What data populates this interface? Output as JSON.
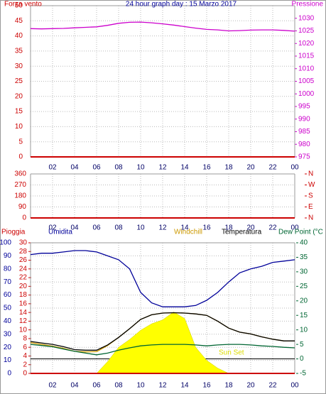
{
  "chart_data": [
    {
      "type": "line",
      "title": "24 hour graph day : 15 Marzo 2017",
      "ylabel": "Forza vento",
      "y2label": "Pressione",
      "ycolor": "#cc0000",
      "y2color": "#cc00cc",
      "x": [
        0,
        1,
        2,
        3,
        4,
        5,
        6,
        7,
        8,
        9,
        10,
        11,
        12,
        13,
        14,
        15,
        16,
        17,
        18,
        19,
        20,
        21,
        22,
        23,
        24
      ],
      "xlim": [
        0,
        24
      ],
      "xticks": [
        {
          "value": 2,
          "label": "02"
        },
        {
          "value": 4,
          "label": "04"
        },
        {
          "value": 6,
          "label": "06"
        },
        {
          "value": 8,
          "label": "08"
        },
        {
          "value": 10,
          "label": "10"
        },
        12,
        14,
        16,
        18,
        20,
        22,
        {
          "value": 24,
          "label": "00"
        }
      ],
      "ylim": [
        0,
        50
      ],
      "yticks": [
        0,
        5,
        10,
        15,
        20,
        25,
        30,
        35,
        40,
        45,
        50
      ],
      "y2lim": [
        975,
        1035
      ],
      "y2ticks": [
        975,
        980,
        985,
        990,
        995,
        1000,
        1005,
        1010,
        1015,
        1020,
        1025,
        1030
      ],
      "grid": true,
      "series": [
        {
          "color": "#cc0000",
          "values": [
            0,
            0,
            0,
            0,
            0,
            0,
            0,
            0,
            0,
            0,
            0,
            0,
            0,
            0,
            0,
            0,
            0,
            0,
            0,
            0,
            0,
            0,
            0,
            0,
            0
          ]
        },
        {
          "color": "#cc00cc",
          "axis": "y2",
          "values": [
            1025.9,
            1025.8,
            1025.9,
            1026.0,
            1026.2,
            1026.4,
            1026.6,
            1027.2,
            1028.0,
            1028.4,
            1028.5,
            1028.2,
            1027.8,
            1027.3,
            1026.7,
            1026.1,
            1025.6,
            1025.4,
            1025.0,
            1025.1,
            1025.3,
            1025.4,
            1025.4,
            1025.2,
            1024.9
          ]
        }
      ]
    },
    {
      "type": "line",
      "ycolor": "#cc0000",
      "y2color": "#cc0000",
      "x": [
        0,
        1,
        2,
        3,
        4,
        5,
        6,
        7,
        8,
        9,
        10,
        11,
        12,
        13,
        14,
        15,
        16,
        17,
        18,
        19,
        20,
        21,
        22,
        23,
        24
      ],
      "xlim": [
        0,
        24
      ],
      "xticks": [
        {
          "value": 2,
          "label": "02"
        },
        {
          "value": 4,
          "label": "04"
        },
        {
          "value": 6,
          "label": "06"
        },
        {
          "value": 8,
          "label": "08"
        },
        {
          "value": 10,
          "label": "10"
        },
        12,
        14,
        16,
        18,
        20,
        22,
        {
          "value": 24,
          "label": "00"
        }
      ],
      "ylim": [
        0,
        360
      ],
      "yticks": [
        0,
        90,
        180,
        270,
        360
      ],
      "y2lim": [
        0,
        360
      ],
      "y2ticks": [
        {
          "value": 360,
          "label": "N"
        },
        {
          "value": 270,
          "label": "W"
        },
        {
          "value": 180,
          "label": "S"
        },
        {
          "value": 90,
          "label": "E"
        },
        {
          "value": 0,
          "label": "N"
        }
      ],
      "grid": true,
      "series": [
        {
          "color": "#cc0000",
          "values": [
            0,
            0,
            0,
            0,
            0,
            0,
            0,
            0,
            0,
            0,
            0,
            0,
            0,
            0,
            0,
            0,
            0,
            0,
            0,
            0,
            0,
            0,
            0,
            0,
            0
          ]
        }
      ]
    },
    {
      "type": "line",
      "ycolor": "#000099",
      "y2color": "#006633",
      "y3color": "#cc0000",
      "x": [
        0,
        1,
        2,
        3,
        4,
        5,
        6,
        7,
        8,
        9,
        10,
        11,
        12,
        13,
        14,
        15,
        16,
        17,
        18,
        19,
        20,
        21,
        22,
        23,
        24
      ],
      "xlim": [
        0,
        24
      ],
      "xticks": [
        {
          "value": 2,
          "label": "02"
        },
        {
          "value": 4,
          "label": "04"
        },
        {
          "value": 6,
          "label": "06"
        },
        {
          "value": 8,
          "label": "08"
        },
        {
          "value": 10,
          "label": "10"
        },
        12,
        14,
        16,
        18,
        20,
        22,
        {
          "value": 24,
          "label": "00"
        }
      ],
      "ylim": [
        0,
        100
      ],
      "yticks": [
        0,
        10,
        20,
        30,
        40,
        50,
        60,
        70,
        80,
        90,
        100
      ],
      "y2lim": [
        -5,
        40
      ],
      "y2ticks": [
        -5,
        0,
        5,
        10,
        15,
        20,
        25,
        30,
        35,
        40
      ],
      "y3lim": [
        0,
        30
      ],
      "y3ticks": [
        0,
        2,
        4,
        6,
        8,
        10,
        12,
        14,
        16,
        18,
        20,
        22,
        24,
        26,
        28,
        30
      ],
      "grid": true,
      "annotations": [
        "Sun Set"
      ],
      "series": [
        {
          "kind": "area",
          "color": "#ffff00",
          "values": [
            0,
            0,
            0,
            0,
            0,
            0,
            0,
            9,
            20,
            26,
            33,
            38,
            41,
            47,
            42,
            20,
            10,
            4,
            0,
            0,
            0,
            0,
            0,
            0,
            0
          ]
        },
        {
          "name": "Pioggia",
          "color": "#cc0000",
          "axis": "y3",
          "values": [
            0,
            0,
            0,
            0,
            0,
            0,
            0,
            0,
            0,
            0,
            0,
            0,
            0,
            0,
            0,
            0,
            0,
            0,
            0,
            0,
            0,
            0,
            0,
            0,
            0
          ]
        },
        {
          "name": "Umidita",
          "color": "#000099",
          "values": [
            91,
            92,
            92,
            93,
            94,
            94,
            93,
            90,
            87,
            80,
            62,
            54,
            51,
            51,
            51,
            52,
            56,
            62,
            70,
            77,
            80,
            82,
            85,
            86,
            87
          ]
        },
        {
          "name": "Windchill",
          "color": "#cc9900",
          "axis": "y2",
          "values": [
            5.6,
            5.0,
            4.4,
            3.6,
            2.6,
            2.4,
            2.5,
            4.6,
            7.4,
            10.4,
            13.6,
            15.2,
            15.8,
            15.9,
            15.8,
            15.5,
            15.0,
            13.0,
            10.6,
            9.2,
            8.6,
            7.6,
            6.8,
            6.2,
            6.2
          ]
        },
        {
          "name": "Temperatura",
          "color": "#000000",
          "axis": "y2",
          "values": [
            6.0,
            5.5,
            5.0,
            4.2,
            3.2,
            3.0,
            3.0,
            4.8,
            7.4,
            10.4,
            13.6,
            15.2,
            15.8,
            15.9,
            15.8,
            15.5,
            15.0,
            13.0,
            10.6,
            9.2,
            8.6,
            7.6,
            6.8,
            6.2,
            6.2
          ]
        },
        {
          "name": "Dew Point (°C",
          "color": "#006633",
          "axis": "y2",
          "values": [
            5.0,
            4.6,
            4.2,
            3.4,
            2.6,
            2.0,
            1.4,
            2.0,
            3.0,
            3.8,
            4.5,
            4.8,
            5.0,
            5.0,
            5.0,
            4.8,
            4.5,
            4.8,
            5.0,
            5.0,
            4.8,
            4.5,
            4.3,
            4.0,
            3.8
          ]
        }
      ]
    }
  ]
}
